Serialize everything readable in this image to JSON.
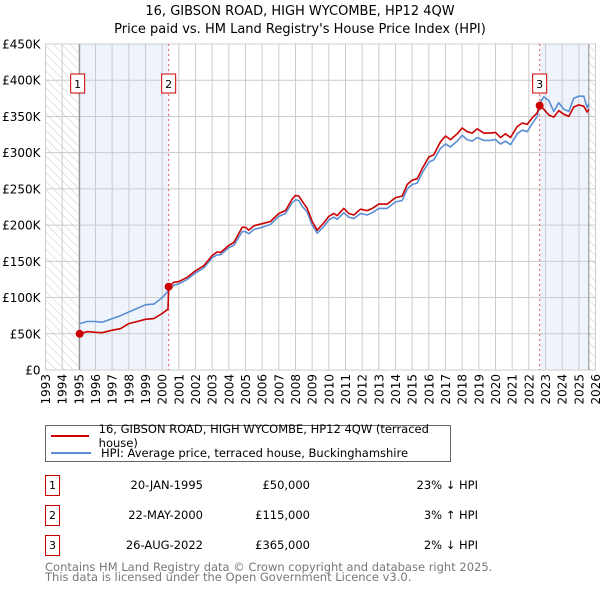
{
  "title": "16, GIBSON ROAD, HIGH WYCOMBE, HP12 4QW",
  "subtitle": "Price paid vs. HM Land Registry's House Price Index (HPI)",
  "chart_data": {
    "type": "line",
    "title": "16, GIBSON ROAD, HIGH WYCOMBE, HP12 4QW — Price paid vs. HM Land Registry's House Price Index (HPI)",
    "xlim": [
      1993,
      2026
    ],
    "ylim": [
      0,
      450000
    ],
    "x_ticks": [
      "1993",
      "1994",
      "1995",
      "1996",
      "1997",
      "1998",
      "1999",
      "2000",
      "2001",
      "2002",
      "2003",
      "2004",
      "2005",
      "2006",
      "2007",
      "2008",
      "2009",
      "2010",
      "2011",
      "2012",
      "2013",
      "2014",
      "2015",
      "2016",
      "2017",
      "2018",
      "2019",
      "2020",
      "2021",
      "2022",
      "2023",
      "2024",
      "2025",
      "2026"
    ],
    "y_ticks": [
      {
        "v": 0,
        "label": "£0"
      },
      {
        "v": 50000,
        "label": "£50K"
      },
      {
        "v": 100000,
        "label": "£100K"
      },
      {
        "v": 150000,
        "label": "£150K"
      },
      {
        "v": 200000,
        "label": "£200K"
      },
      {
        "v": 250000,
        "label": "£250K"
      },
      {
        "v": 300000,
        "label": "£300K"
      },
      {
        "v": 350000,
        "label": "£350K"
      },
      {
        "v": 400000,
        "label": "£400K"
      },
      {
        "v": 450000,
        "label": "£450K"
      }
    ],
    "grid": true,
    "colors": {
      "property": "#cc0000",
      "hpi": "#5b8fd4",
      "shade": "#eef3fc",
      "hatch": "#bbbbbb"
    },
    "series": [
      {
        "name": "16, GIBSON ROAD, HIGH WYCOMBE, HP12 4QW (terraced house)",
        "color": "#cc0000",
        "points": [
          [
            1995.05,
            50000
          ],
          [
            1995.5,
            53000
          ],
          [
            1996.0,
            52000
          ],
          [
            1996.4,
            51500
          ],
          [
            1997.0,
            55000
          ],
          [
            1997.5,
            57000
          ],
          [
            1998.0,
            64000
          ],
          [
            1998.5,
            67000
          ],
          [
            1999.0,
            70000
          ],
          [
            1999.5,
            71000
          ],
          [
            2000.0,
            78000
          ],
          [
            2000.35,
            84000
          ],
          [
            2000.39,
            115000
          ],
          [
            2000.7,
            121000
          ],
          [
            2001.0,
            122000
          ],
          [
            2001.5,
            128000
          ],
          [
            2002.0,
            137000
          ],
          [
            2002.5,
            144000
          ],
          [
            2003.0,
            158000
          ],
          [
            2003.3,
            163000
          ],
          [
            2003.5,
            162000
          ],
          [
            2004.0,
            172000
          ],
          [
            2004.3,
            176000
          ],
          [
            2004.8,
            197000
          ],
          [
            2005.0,
            197000
          ],
          [
            2005.2,
            193000
          ],
          [
            2005.5,
            199000
          ],
          [
            2006.0,
            202000
          ],
          [
            2006.5,
            205000
          ],
          [
            2007.0,
            216000
          ],
          [
            2007.4,
            220000
          ],
          [
            2007.8,
            236000
          ],
          [
            2008.0,
            241000
          ],
          [
            2008.2,
            240000
          ],
          [
            2008.4,
            233000
          ],
          [
            2008.7,
            223000
          ],
          [
            2009.0,
            205000
          ],
          [
            2009.3,
            193000
          ],
          [
            2009.7,
            203000
          ],
          [
            2010.0,
            212000
          ],
          [
            2010.3,
            216000
          ],
          [
            2010.5,
            213000
          ],
          [
            2010.9,
            223000
          ],
          [
            2011.2,
            216000
          ],
          [
            2011.5,
            214000
          ],
          [
            2011.9,
            222000
          ],
          [
            2012.3,
            220000
          ],
          [
            2012.6,
            223000
          ],
          [
            2013.0,
            229000
          ],
          [
            2013.5,
            229000
          ],
          [
            2014.0,
            238000
          ],
          [
            2014.4,
            240000
          ],
          [
            2014.7,
            256000
          ],
          [
            2015.0,
            262000
          ],
          [
            2015.3,
            264000
          ],
          [
            2015.6,
            278000
          ],
          [
            2016.0,
            294000
          ],
          [
            2016.3,
            297000
          ],
          [
            2016.7,
            315000
          ],
          [
            2017.0,
            323000
          ],
          [
            2017.3,
            318000
          ],
          [
            2017.7,
            326000
          ],
          [
            2018.0,
            334000
          ],
          [
            2018.3,
            329000
          ],
          [
            2018.6,
            327000
          ],
          [
            2018.9,
            333000
          ],
          [
            2019.3,
            327000
          ],
          [
            2019.7,
            327000
          ],
          [
            2020.0,
            328000
          ],
          [
            2020.3,
            321000
          ],
          [
            2020.6,
            326000
          ],
          [
            2020.9,
            321000
          ],
          [
            2021.3,
            336000
          ],
          [
            2021.6,
            341000
          ],
          [
            2021.9,
            339000
          ],
          [
            2022.2,
            348000
          ],
          [
            2022.5,
            355000
          ],
          [
            2022.65,
            365000
          ],
          [
            2022.9,
            360000
          ],
          [
            2023.2,
            352000
          ],
          [
            2023.5,
            349000
          ],
          [
            2023.8,
            358000
          ],
          [
            2024.1,
            353000
          ],
          [
            2024.4,
            350000
          ],
          [
            2024.7,
            363000
          ],
          [
            2025.0,
            366000
          ],
          [
            2025.3,
            364000
          ],
          [
            2025.5,
            356000
          ],
          [
            2025.6,
            360000
          ]
        ]
      },
      {
        "name": "HPI: Average price, terraced house, Buckinghamshire",
        "color": "#5b8fd4",
        "points": [
          [
            1995.05,
            64000
          ],
          [
            1995.5,
            67000
          ],
          [
            1996.0,
            67000
          ],
          [
            1996.4,
            66000
          ],
          [
            1997.0,
            71000
          ],
          [
            1997.5,
            75000
          ],
          [
            1998.0,
            80000
          ],
          [
            1998.5,
            85000
          ],
          [
            1999.0,
            90000
          ],
          [
            1999.5,
            91000
          ],
          [
            2000.0,
            100000
          ],
          [
            2000.4,
            110000
          ],
          [
            2000.7,
            117000
          ],
          [
            2001.0,
            119000
          ],
          [
            2001.5,
            125000
          ],
          [
            2002.0,
            134000
          ],
          [
            2002.5,
            141000
          ],
          [
            2003.0,
            155000
          ],
          [
            2003.3,
            159000
          ],
          [
            2003.5,
            159000
          ],
          [
            2004.0,
            169000
          ],
          [
            2004.3,
            172000
          ],
          [
            2004.8,
            191000
          ],
          [
            2005.0,
            191000
          ],
          [
            2005.2,
            188000
          ],
          [
            2005.5,
            194000
          ],
          [
            2006.0,
            197000
          ],
          [
            2006.5,
            201000
          ],
          [
            2007.0,
            212000
          ],
          [
            2007.4,
            216000
          ],
          [
            2007.8,
            231000
          ],
          [
            2008.0,
            235000
          ],
          [
            2008.2,
            234000
          ],
          [
            2008.4,
            226000
          ],
          [
            2008.7,
            218000
          ],
          [
            2009.0,
            200000
          ],
          [
            2009.3,
            189000
          ],
          [
            2009.7,
            198000
          ],
          [
            2010.0,
            207000
          ],
          [
            2010.3,
            211000
          ],
          [
            2010.5,
            208000
          ],
          [
            2010.9,
            217000
          ],
          [
            2011.2,
            211000
          ],
          [
            2011.5,
            209000
          ],
          [
            2011.9,
            216000
          ],
          [
            2012.3,
            214000
          ],
          [
            2012.6,
            217000
          ],
          [
            2013.0,
            223000
          ],
          [
            2013.5,
            223000
          ],
          [
            2014.0,
            232000
          ],
          [
            2014.4,
            234000
          ],
          [
            2014.7,
            250000
          ],
          [
            2015.0,
            256000
          ],
          [
            2015.3,
            258000
          ],
          [
            2015.6,
            272000
          ],
          [
            2016.0,
            287000
          ],
          [
            2016.3,
            290000
          ],
          [
            2016.7,
            306000
          ],
          [
            2017.0,
            312000
          ],
          [
            2017.3,
            308000
          ],
          [
            2017.7,
            316000
          ],
          [
            2018.0,
            324000
          ],
          [
            2018.3,
            318000
          ],
          [
            2018.6,
            316000
          ],
          [
            2018.9,
            321000
          ],
          [
            2019.3,
            317000
          ],
          [
            2019.7,
            317000
          ],
          [
            2020.0,
            318000
          ],
          [
            2020.3,
            312000
          ],
          [
            2020.6,
            316000
          ],
          [
            2020.9,
            311000
          ],
          [
            2021.3,
            326000
          ],
          [
            2021.6,
            331000
          ],
          [
            2021.9,
            329000
          ],
          [
            2022.2,
            340000
          ],
          [
            2022.5,
            350000
          ],
          [
            2022.65,
            368000
          ],
          [
            2022.9,
            377000
          ],
          [
            2023.2,
            372000
          ],
          [
            2023.5,
            357000
          ],
          [
            2023.8,
            369000
          ],
          [
            2024.1,
            360000
          ],
          [
            2024.4,
            357000
          ],
          [
            2024.7,
            375000
          ],
          [
            2025.0,
            378000
          ],
          [
            2025.3,
            378000
          ],
          [
            2025.5,
            362000
          ],
          [
            2025.6,
            368000
          ]
        ]
      }
    ],
    "sales": [
      {
        "id": "1",
        "year": 1995.05,
        "price": 50000
      },
      {
        "id": "2",
        "year": 2000.39,
        "price": 115000
      },
      {
        "id": "3",
        "year": 2022.65,
        "price": 365000
      }
    ],
    "shaded_ranges": [
      [
        1995.05,
        2000.39
      ],
      [
        2022.65,
        2025.6
      ]
    ],
    "hatched_ranges": [
      [
        1993,
        1995.05
      ],
      [
        2025.6,
        2026
      ]
    ],
    "legend": "below"
  },
  "legend": [
    {
      "label": "16, GIBSON ROAD, HIGH WYCOMBE, HP12 4QW (terraced house)",
      "color": "#cc0000"
    },
    {
      "label": "HPI: Average price, terraced house, Buckinghamshire",
      "color": "#5b8fd4"
    }
  ],
  "transactions": [
    {
      "num": "1",
      "date": "20-JAN-1995",
      "price": "£50,000",
      "hpi": "23% ↓ HPI"
    },
    {
      "num": "2",
      "date": "22-MAY-2000",
      "price": "£115,000",
      "hpi": "3% ↑ HPI"
    },
    {
      "num": "3",
      "date": "26-AUG-2022",
      "price": "£365,000",
      "hpi": "2% ↓ HPI"
    }
  ],
  "footer": [
    "Contains HM Land Registry data © Crown copyright and database right 2025.",
    "This data is licensed under the Open Government Licence v3.0."
  ]
}
